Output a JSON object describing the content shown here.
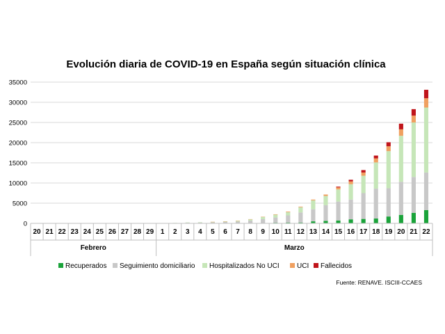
{
  "chart_data": {
    "type": "bar",
    "stacked": true,
    "title": "Evolución diaria de COVID-19 en España según situación clínica",
    "source": "Fuente: RENAVE. ISCIII-CCAES",
    "legend_position": "bottom",
    "grid": true,
    "ylim": [
      0,
      35000
    ],
    "yticks": [
      0,
      5000,
      10000,
      15000,
      20000,
      25000,
      30000,
      35000
    ],
    "months": [
      {
        "label": "Febrero",
        "start": 0,
        "end": 9
      },
      {
        "label": "Marzo",
        "start": 10,
        "end": 31
      }
    ],
    "categories": [
      "20",
      "21",
      "22",
      "23",
      "24",
      "25",
      "26",
      "27",
      "28",
      "29",
      "1",
      "2",
      "3",
      "4",
      "5",
      "6",
      "7",
      "8",
      "9",
      "10",
      "11",
      "12",
      "13",
      "14",
      "15",
      "16",
      "17",
      "18",
      "19",
      "20",
      "21",
      "22"
    ],
    "series": [
      {
        "name": "Recuperados",
        "color": "#1aa33a",
        "values": [
          0,
          0,
          0,
          0,
          0,
          0,
          0,
          0,
          0,
          0,
          0,
          0,
          0,
          0,
          0,
          0,
          0,
          0,
          50,
          150,
          180,
          200,
          500,
          600,
          700,
          1000,
          1100,
          1200,
          1700,
          2100,
          2600,
          3300
        ]
      },
      {
        "name": "Seguimiento domiciliario",
        "color": "#c8c8c8",
        "values": [
          0,
          0,
          0,
          0,
          0,
          0,
          0,
          0,
          0,
          0,
          50,
          80,
          150,
          180,
          250,
          350,
          450,
          700,
          1000,
          1300,
          1800,
          2500,
          3000,
          3900,
          4700,
          4900,
          6400,
          7400,
          7000,
          8200,
          8900,
          9300
        ]
      },
      {
        "name": "Hospitalizados No UCI",
        "color": "#c6e6b8",
        "values": [
          0,
          0,
          0,
          0,
          0,
          0,
          0,
          0,
          0,
          0,
          20,
          40,
          80,
          100,
          120,
          150,
          200,
          300,
          550,
          700,
          800,
          1300,
          2200,
          2300,
          3000,
          3800,
          4300,
          6500,
          9200,
          11400,
          13500,
          16100
        ]
      },
      {
        "name": "UCI",
        "color": "#f0a060",
        "values": [
          0,
          0,
          0,
          0,
          0,
          0,
          0,
          0,
          0,
          0,
          0,
          0,
          0,
          0,
          10,
          20,
          40,
          50,
          70,
          100,
          150,
          150,
          200,
          350,
          500,
          700,
          800,
          1000,
          1200,
          1600,
          1700,
          2300
        ]
      },
      {
        "name": "Fallecidos",
        "color": "#c0141a",
        "values": [
          0,
          0,
          0,
          0,
          0,
          0,
          0,
          0,
          0,
          0,
          0,
          0,
          0,
          0,
          0,
          0,
          0,
          0,
          0,
          0,
          0,
          0,
          0,
          0,
          200,
          400,
          600,
          700,
          1000,
          1400,
          1600,
          2100
        ]
      }
    ]
  }
}
